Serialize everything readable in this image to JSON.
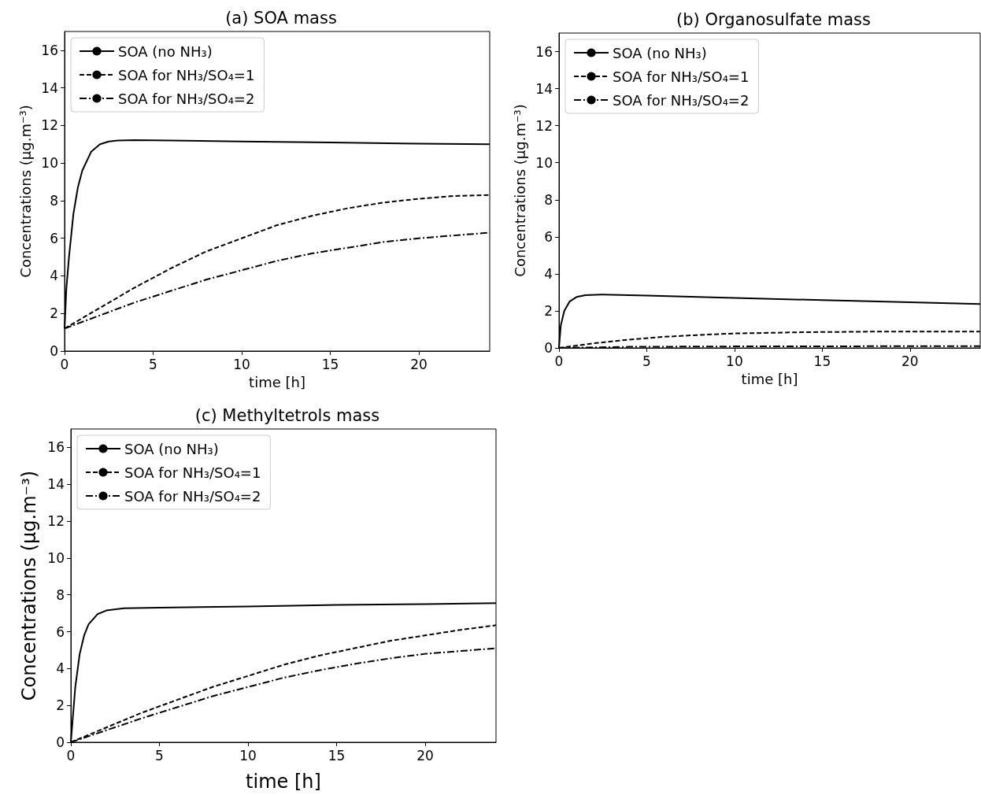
{
  "chart_data": [
    {
      "type": "line",
      "title": "(a) SOA mass",
      "xlabel": "time [h]",
      "ylabel": "Concentrations (μg.m⁻³)",
      "xlim": [
        0,
        24
      ],
      "xticks": [
        0,
        5,
        10,
        15,
        20
      ],
      "ylim": [
        0,
        17
      ],
      "yticks": [
        0,
        2,
        4,
        6,
        8,
        10,
        12,
        14,
        16
      ],
      "grid": false,
      "legend": "top left",
      "marker": "none",
      "series": [
        {
          "name": "SOA (no NH₃)",
          "color": "#000000",
          "line_style": "solid",
          "x": [
            0,
            0.1,
            0.25,
            0.5,
            0.75,
            1,
            1.5,
            2,
            2.5,
            3,
            4,
            6,
            10,
            15,
            20,
            24
          ],
          "values": [
            1.2,
            3.3,
            5,
            7.3,
            8.7,
            9.6,
            10.6,
            11,
            11.15,
            11.2,
            11.22,
            11.2,
            11.15,
            11.1,
            11.03,
            11
          ]
        },
        {
          "name": "SOA for NH₃/SO₄=1",
          "color": "#000000",
          "line_style": "dashed",
          "x": [
            0,
            2,
            4,
            6,
            8,
            10,
            12,
            14,
            16,
            18,
            20,
            22,
            24
          ],
          "values": [
            1.2,
            2.3,
            3.4,
            4.4,
            5.3,
            6,
            6.7,
            7.2,
            7.6,
            7.9,
            8.1,
            8.25,
            8.3
          ]
        },
        {
          "name": "SOA for NH₃/SO₄=2",
          "color": "#000000",
          "line_style": "dashdot",
          "x": [
            0,
            2,
            4,
            6,
            8,
            10,
            12,
            14,
            16,
            18,
            20,
            22,
            24
          ],
          "values": [
            1.2,
            1.9,
            2.6,
            3.2,
            3.8,
            4.3,
            4.8,
            5.2,
            5.5,
            5.8,
            6,
            6.15,
            6.3
          ]
        }
      ]
    },
    {
      "type": "line",
      "title": "(b) Organosulfate mass",
      "xlabel": "time [h]",
      "ylabel": "Concentrations (μg.m⁻³)",
      "xlim": [
        0,
        24
      ],
      "xticks": [
        0,
        5,
        10,
        15,
        20
      ],
      "ylim": [
        0,
        17
      ],
      "yticks": [
        0,
        2,
        4,
        6,
        8,
        10,
        12,
        14,
        16
      ],
      "grid": false,
      "legend": "top left",
      "marker": "none",
      "series": [
        {
          "name": "SOA (no NH₃)",
          "color": "#000000",
          "line_style": "solid",
          "x": [
            0,
            0.1,
            0.3,
            0.6,
            1,
            1.5,
            2.5,
            5,
            10,
            15,
            20,
            24
          ],
          "values": [
            0,
            1.2,
            2,
            2.5,
            2.75,
            2.85,
            2.88,
            2.83,
            2.7,
            2.58,
            2.47,
            2.37
          ]
        },
        {
          "name": "SOA for NH₃/SO₄=1",
          "color": "#000000",
          "line_style": "dashed",
          "x": [
            0,
            2,
            4,
            6,
            8,
            10,
            14,
            18,
            24
          ],
          "values": [
            0,
            0.25,
            0.45,
            0.6,
            0.7,
            0.78,
            0.85,
            0.88,
            0.88
          ]
        },
        {
          "name": "SOA for NH₃/SO₄=2",
          "color": "#000000",
          "line_style": "dashdot",
          "x": [
            0,
            4,
            10,
            24
          ],
          "values": [
            0,
            0.06,
            0.08,
            0.1
          ]
        }
      ]
    },
    {
      "type": "line",
      "title": "(c) Methyltetrols mass",
      "xlabel": "time [h]",
      "ylabel": "Concentrations (μg.m⁻³)",
      "xlim": [
        0,
        24
      ],
      "xticks": [
        0,
        5,
        10,
        15,
        20
      ],
      "ylim": [
        0,
        17
      ],
      "yticks": [
        0,
        2,
        4,
        6,
        8,
        10,
        12,
        14,
        16
      ],
      "grid": false,
      "legend": "top left",
      "marker": "none",
      "series": [
        {
          "name": "SOA (no NH₃)",
          "color": "#000000",
          "line_style": "solid",
          "x": [
            0,
            0.25,
            0.5,
            0.75,
            1,
            1.5,
            2,
            3,
            5,
            10,
            15,
            20,
            24
          ],
          "values": [
            0,
            3,
            4.8,
            5.8,
            6.4,
            6.95,
            7.15,
            7.27,
            7.3,
            7.37,
            7.45,
            7.5,
            7.55
          ]
        },
        {
          "name": "SOA for NH₃/SO₄=1",
          "color": "#000000",
          "line_style": "dashed",
          "x": [
            0,
            2,
            4,
            6,
            8,
            10,
            12,
            14,
            16,
            18,
            20,
            22,
            24
          ],
          "values": [
            0,
            0.8,
            1.6,
            2.3,
            3,
            3.6,
            4.2,
            4.7,
            5.1,
            5.5,
            5.8,
            6.1,
            6.35
          ]
        },
        {
          "name": "SOA for NH₃/SO₄=2",
          "color": "#000000",
          "line_style": "dashdot",
          "x": [
            0,
            2,
            4,
            6,
            8,
            10,
            12,
            14,
            16,
            18,
            20,
            22,
            24
          ],
          "values": [
            0,
            0.65,
            1.3,
            1.9,
            2.5,
            3,
            3.5,
            3.9,
            4.25,
            4.55,
            4.8,
            4.95,
            5.1
          ]
        }
      ]
    }
  ]
}
